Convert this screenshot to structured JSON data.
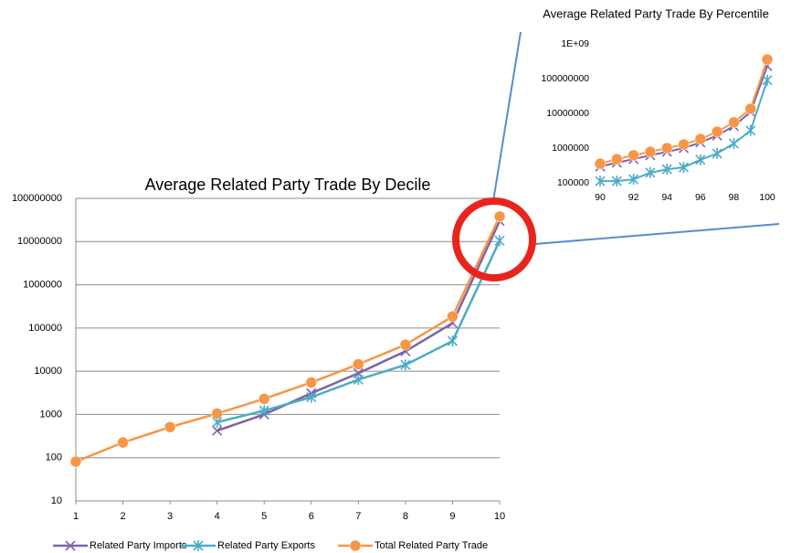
{
  "chart_data": [
    {
      "type": "line",
      "title": "Average Related Party Trade By Decile",
      "x": [
        1,
        2,
        3,
        4,
        5,
        6,
        7,
        8,
        9,
        10
      ],
      "xlim": [
        1,
        10
      ],
      "xticks": [
        1,
        2,
        3,
        4,
        5,
        6,
        7,
        8,
        9,
        10
      ],
      "ylim": [
        10,
        100000000
      ],
      "yticks": [
        10,
        100,
        1000,
        10000,
        100000,
        1000000,
        10000000,
        100000000
      ],
      "log_scale": true,
      "grid": true,
      "series": [
        {
          "name": "Related Party Imports",
          "color": "#7f63a8",
          "marker": "x",
          "values": [
            null,
            null,
            null,
            420,
            1000,
            3100,
            9000,
            29000,
            130000,
            30000000
          ]
        },
        {
          "name": "Related Party Exports",
          "color": "#4bacc6",
          "marker": "star",
          "values": [
            null,
            null,
            null,
            660,
            1230,
            2500,
            6400,
            14000,
            50000,
            10500000
          ]
        },
        {
          "name": "Total Related Party Trade",
          "color": "#f79646",
          "marker": "circle",
          "values": [
            81,
            224,
            510,
            1050,
            2300,
            5500,
            14500,
            41000,
            185000,
            38000000
          ]
        }
      ]
    },
    {
      "type": "line",
      "title": "Average Related Party Trade By Percentile",
      "x": [
        90,
        91,
        92,
        93,
        94,
        95,
        96,
        97,
        98,
        99,
        100
      ],
      "xlim": [
        90,
        100
      ],
      "xticks": [
        90,
        92,
        94,
        96,
        98,
        100
      ],
      "ylim": [
        100000,
        1000000000
      ],
      "yticks": [
        100000,
        1000000,
        10000000,
        100000000,
        {
          "value": 1000000000,
          "label": "1E+09"
        }
      ],
      "log_scale": true,
      "grid": false,
      "series": [
        {
          "color": "#7f63a8",
          "marker": "x",
          "values": [
            295000,
            380000,
            480000,
            620000,
            780000,
            1000000,
            1450000,
            2300000,
            4300000,
            11000000,
            230000000
          ]
        },
        {
          "color": "#4bacc6",
          "marker": "star",
          "values": [
            112000,
            112000,
            126000,
            195000,
            245000,
            280000,
            460000,
            700000,
            1350000,
            3200000,
            90000000
          ]
        },
        {
          "color": "#f79646",
          "marker": "circle",
          "values": [
            355000,
            480000,
            620000,
            780000,
            1000000,
            1260000,
            1820000,
            2950000,
            5500000,
            13500000,
            355000000
          ]
        }
      ]
    }
  ]
}
